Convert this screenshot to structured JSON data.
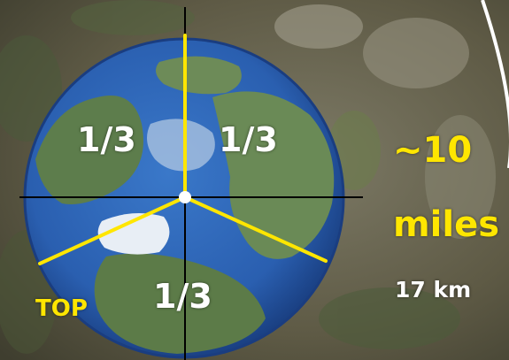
{
  "labels": {
    "third_left": "1/3",
    "third_right": "1/3",
    "third_bottom": "1/3",
    "top": "TOP",
    "distance_value": "~10",
    "distance_unit": "miles",
    "distance_metric": "17 km"
  },
  "colors": {
    "guide_yellow": "#ffe600",
    "crosshair": "#000000",
    "label_white": "#ffffff",
    "earth_ocean": "#2a5fb0",
    "earth_ice": "#e8eef5"
  }
}
